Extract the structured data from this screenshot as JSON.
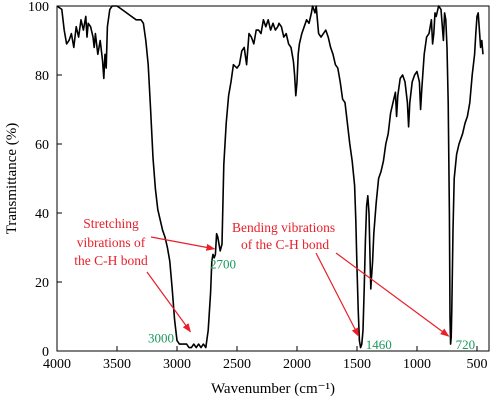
{
  "chart_data": {
    "type": "line",
    "title": "",
    "xlabel": "Wavenumber (cm⁻¹)",
    "ylabel": "Transmittance (%)",
    "xlim": [
      4000,
      400
    ],
    "ylim": [
      0,
      100
    ],
    "x_reversed": true,
    "x_ticks": [
      4000,
      3500,
      3000,
      2500,
      2000,
      1500,
      1000,
      500
    ],
    "y_ticks": [
      0,
      20,
      40,
      60,
      80,
      100
    ],
    "grid": false,
    "legend": "none",
    "line_color": "#000000",
    "series": [
      {
        "points": [
          [
            4000,
            100
          ],
          [
            3960,
            99
          ],
          [
            3940,
            93
          ],
          [
            3920,
            89
          ],
          [
            3900,
            90
          ],
          [
            3880,
            92
          ],
          [
            3860,
            88
          ],
          [
            3840,
            94
          ],
          [
            3820,
            91
          ],
          [
            3800,
            96
          ],
          [
            3780,
            93
          ],
          [
            3760,
            97
          ],
          [
            3750,
            91
          ],
          [
            3740,
            95
          ],
          [
            3720,
            94
          ],
          [
            3700,
            91
          ],
          [
            3690,
            88
          ],
          [
            3680,
            92
          ],
          [
            3660,
            86
          ],
          [
            3640,
            90
          ],
          [
            3620,
            84
          ],
          [
            3610,
            79
          ],
          [
            3600,
            86
          ],
          [
            3590,
            82
          ],
          [
            3580,
            94
          ],
          [
            3560,
            99
          ],
          [
            3540,
            100
          ],
          [
            3500,
            100
          ],
          [
            3460,
            99
          ],
          [
            3420,
            98
          ],
          [
            3380,
            97
          ],
          [
            3340,
            96
          ],
          [
            3300,
            96
          ],
          [
            3280,
            95
          ],
          [
            3260,
            90
          ],
          [
            3240,
            83
          ],
          [
            3220,
            70
          ],
          [
            3200,
            56
          ],
          [
            3180,
            47
          ],
          [
            3160,
            41
          ],
          [
            3140,
            38
          ],
          [
            3120,
            35
          ],
          [
            3100,
            33
          ],
          [
            3080,
            30
          ],
          [
            3060,
            26
          ],
          [
            3040,
            18
          ],
          [
            3020,
            9
          ],
          [
            3000,
            3
          ],
          [
            2980,
            2
          ],
          [
            2960,
            2
          ],
          [
            2940,
            2
          ],
          [
            2920,
            2
          ],
          [
            2900,
            1
          ],
          [
            2880,
            1
          ],
          [
            2860,
            2
          ],
          [
            2840,
            1
          ],
          [
            2820,
            2
          ],
          [
            2800,
            1
          ],
          [
            2780,
            2
          ],
          [
            2760,
            1
          ],
          [
            2740,
            6
          ],
          [
            2720,
            17
          ],
          [
            2710,
            26
          ],
          [
            2700,
            28
          ],
          [
            2690,
            27
          ],
          [
            2680,
            28
          ],
          [
            2670,
            34
          ],
          [
            2660,
            33
          ],
          [
            2650,
            31
          ],
          [
            2640,
            29
          ],
          [
            2625,
            31
          ],
          [
            2610,
            54
          ],
          [
            2590,
            66
          ],
          [
            2570,
            74
          ],
          [
            2550,
            78
          ],
          [
            2530,
            83
          ],
          [
            2500,
            82
          ],
          [
            2480,
            83
          ],
          [
            2460,
            87
          ],
          [
            2440,
            88
          ],
          [
            2420,
            83
          ],
          [
            2400,
            92
          ],
          [
            2380,
            91
          ],
          [
            2360,
            89
          ],
          [
            2340,
            93
          ],
          [
            2320,
            93
          ],
          [
            2300,
            92
          ],
          [
            2280,
            96
          ],
          [
            2260,
            94
          ],
          [
            2240,
            96
          ],
          [
            2220,
            93
          ],
          [
            2200,
            95
          ],
          [
            2180,
            93
          ],
          [
            2160,
            94
          ],
          [
            2150,
            95
          ],
          [
            2130,
            94
          ],
          [
            2110,
            91
          ],
          [
            2090,
            92
          ],
          [
            2070,
            89
          ],
          [
            2050,
            88
          ],
          [
            2030,
            84
          ],
          [
            2020,
            80
          ],
          [
            2010,
            74
          ],
          [
            2000,
            78
          ],
          [
            1990,
            86
          ],
          [
            1980,
            89
          ],
          [
            1960,
            92
          ],
          [
            1940,
            94
          ],
          [
            1920,
            96
          ],
          [
            1900,
            95
          ],
          [
            1880,
            98
          ],
          [
            1870,
            100
          ],
          [
            1850,
            98
          ],
          [
            1840,
            100
          ],
          [
            1830,
            96
          ],
          [
            1820,
            92
          ],
          [
            1800,
            91
          ],
          [
            1780,
            92
          ],
          [
            1760,
            93
          ],
          [
            1740,
            91
          ],
          [
            1720,
            88
          ],
          [
            1700,
            86
          ],
          [
            1680,
            83
          ],
          [
            1660,
            82
          ],
          [
            1640,
            78
          ],
          [
            1620,
            73
          ],
          [
            1600,
            72
          ],
          [
            1580,
            66
          ],
          [
            1560,
            60
          ],
          [
            1540,
            55
          ],
          [
            1520,
            48
          ],
          [
            1510,
            38
          ],
          [
            1500,
            24
          ],
          [
            1490,
            12
          ],
          [
            1480,
            3
          ],
          [
            1470,
            1
          ],
          [
            1460,
            2
          ],
          [
            1450,
            6
          ],
          [
            1440,
            18
          ],
          [
            1430,
            32
          ],
          [
            1420,
            42
          ],
          [
            1410,
            45
          ],
          [
            1400,
            40
          ],
          [
            1390,
            25
          ],
          [
            1385,
            18
          ],
          [
            1380,
            21
          ],
          [
            1370,
            26
          ],
          [
            1360,
            34
          ],
          [
            1340,
            43
          ],
          [
            1320,
            50
          ],
          [
            1300,
            52
          ],
          [
            1280,
            55
          ],
          [
            1260,
            60
          ],
          [
            1240,
            63
          ],
          [
            1230,
            66
          ],
          [
            1220,
            69
          ],
          [
            1200,
            72
          ],
          [
            1180,
            75
          ],
          [
            1170,
            68
          ],
          [
            1160,
            74
          ],
          [
            1140,
            79
          ],
          [
            1120,
            80
          ],
          [
            1100,
            78
          ],
          [
            1080,
            72
          ],
          [
            1070,
            65
          ],
          [
            1060,
            72
          ],
          [
            1040,
            78
          ],
          [
            1020,
            80
          ],
          [
            1000,
            81
          ],
          [
            980,
            78
          ],
          [
            970,
            70
          ],
          [
            960,
            76
          ],
          [
            940,
            86
          ],
          [
            920,
            91
          ],
          [
            900,
            92
          ],
          [
            880,
            96
          ],
          [
            870,
            89
          ],
          [
            860,
            92
          ],
          [
            850,
            98
          ],
          [
            840,
            97
          ],
          [
            820,
            100
          ],
          [
            800,
            99
          ],
          [
            780,
            90
          ],
          [
            770,
            98
          ],
          [
            760,
            96
          ],
          [
            750,
            88
          ],
          [
            740,
            72
          ],
          [
            730,
            40
          ],
          [
            725,
            10
          ],
          [
            720,
            2
          ],
          [
            715,
            4
          ],
          [
            710,
            12
          ],
          [
            700,
            35
          ],
          [
            690,
            50
          ],
          [
            670,
            57
          ],
          [
            650,
            60
          ],
          [
            620,
            63
          ],
          [
            600,
            66
          ],
          [
            580,
            68
          ],
          [
            560,
            72
          ],
          [
            540,
            80
          ],
          [
            520,
            86
          ],
          [
            510,
            92
          ],
          [
            500,
            97
          ],
          [
            490,
            98
          ],
          [
            480,
            93
          ],
          [
            470,
            88
          ],
          [
            460,
            90
          ],
          [
            450,
            86
          ]
        ]
      }
    ],
    "peak_labels": [
      {
        "text": "3000",
        "x": 3000,
        "y": 3
      },
      {
        "text": "2700",
        "x": 2700,
        "y": 28
      },
      {
        "text": "1460",
        "x": 1460,
        "y": 2
      },
      {
        "text": "720",
        "x": 720,
        "y": 2
      }
    ],
    "annotations": [
      {
        "text": [
          "Stretching",
          "vibrations of",
          "the C-H bond"
        ],
        "arrow_targets": [
          [
            2880,
            3
          ],
          [
            2680,
            27
          ]
        ]
      },
      {
        "text": [
          "Bending vibrations",
          "of the C-H bond"
        ],
        "arrow_targets": [
          [
            1470,
            2
          ],
          [
            720,
            2
          ]
        ]
      }
    ],
    "colors": {
      "line": "#000000",
      "annotation": "#e8202a",
      "peak_label": "#1a9a5c",
      "axis": "#000000"
    }
  }
}
